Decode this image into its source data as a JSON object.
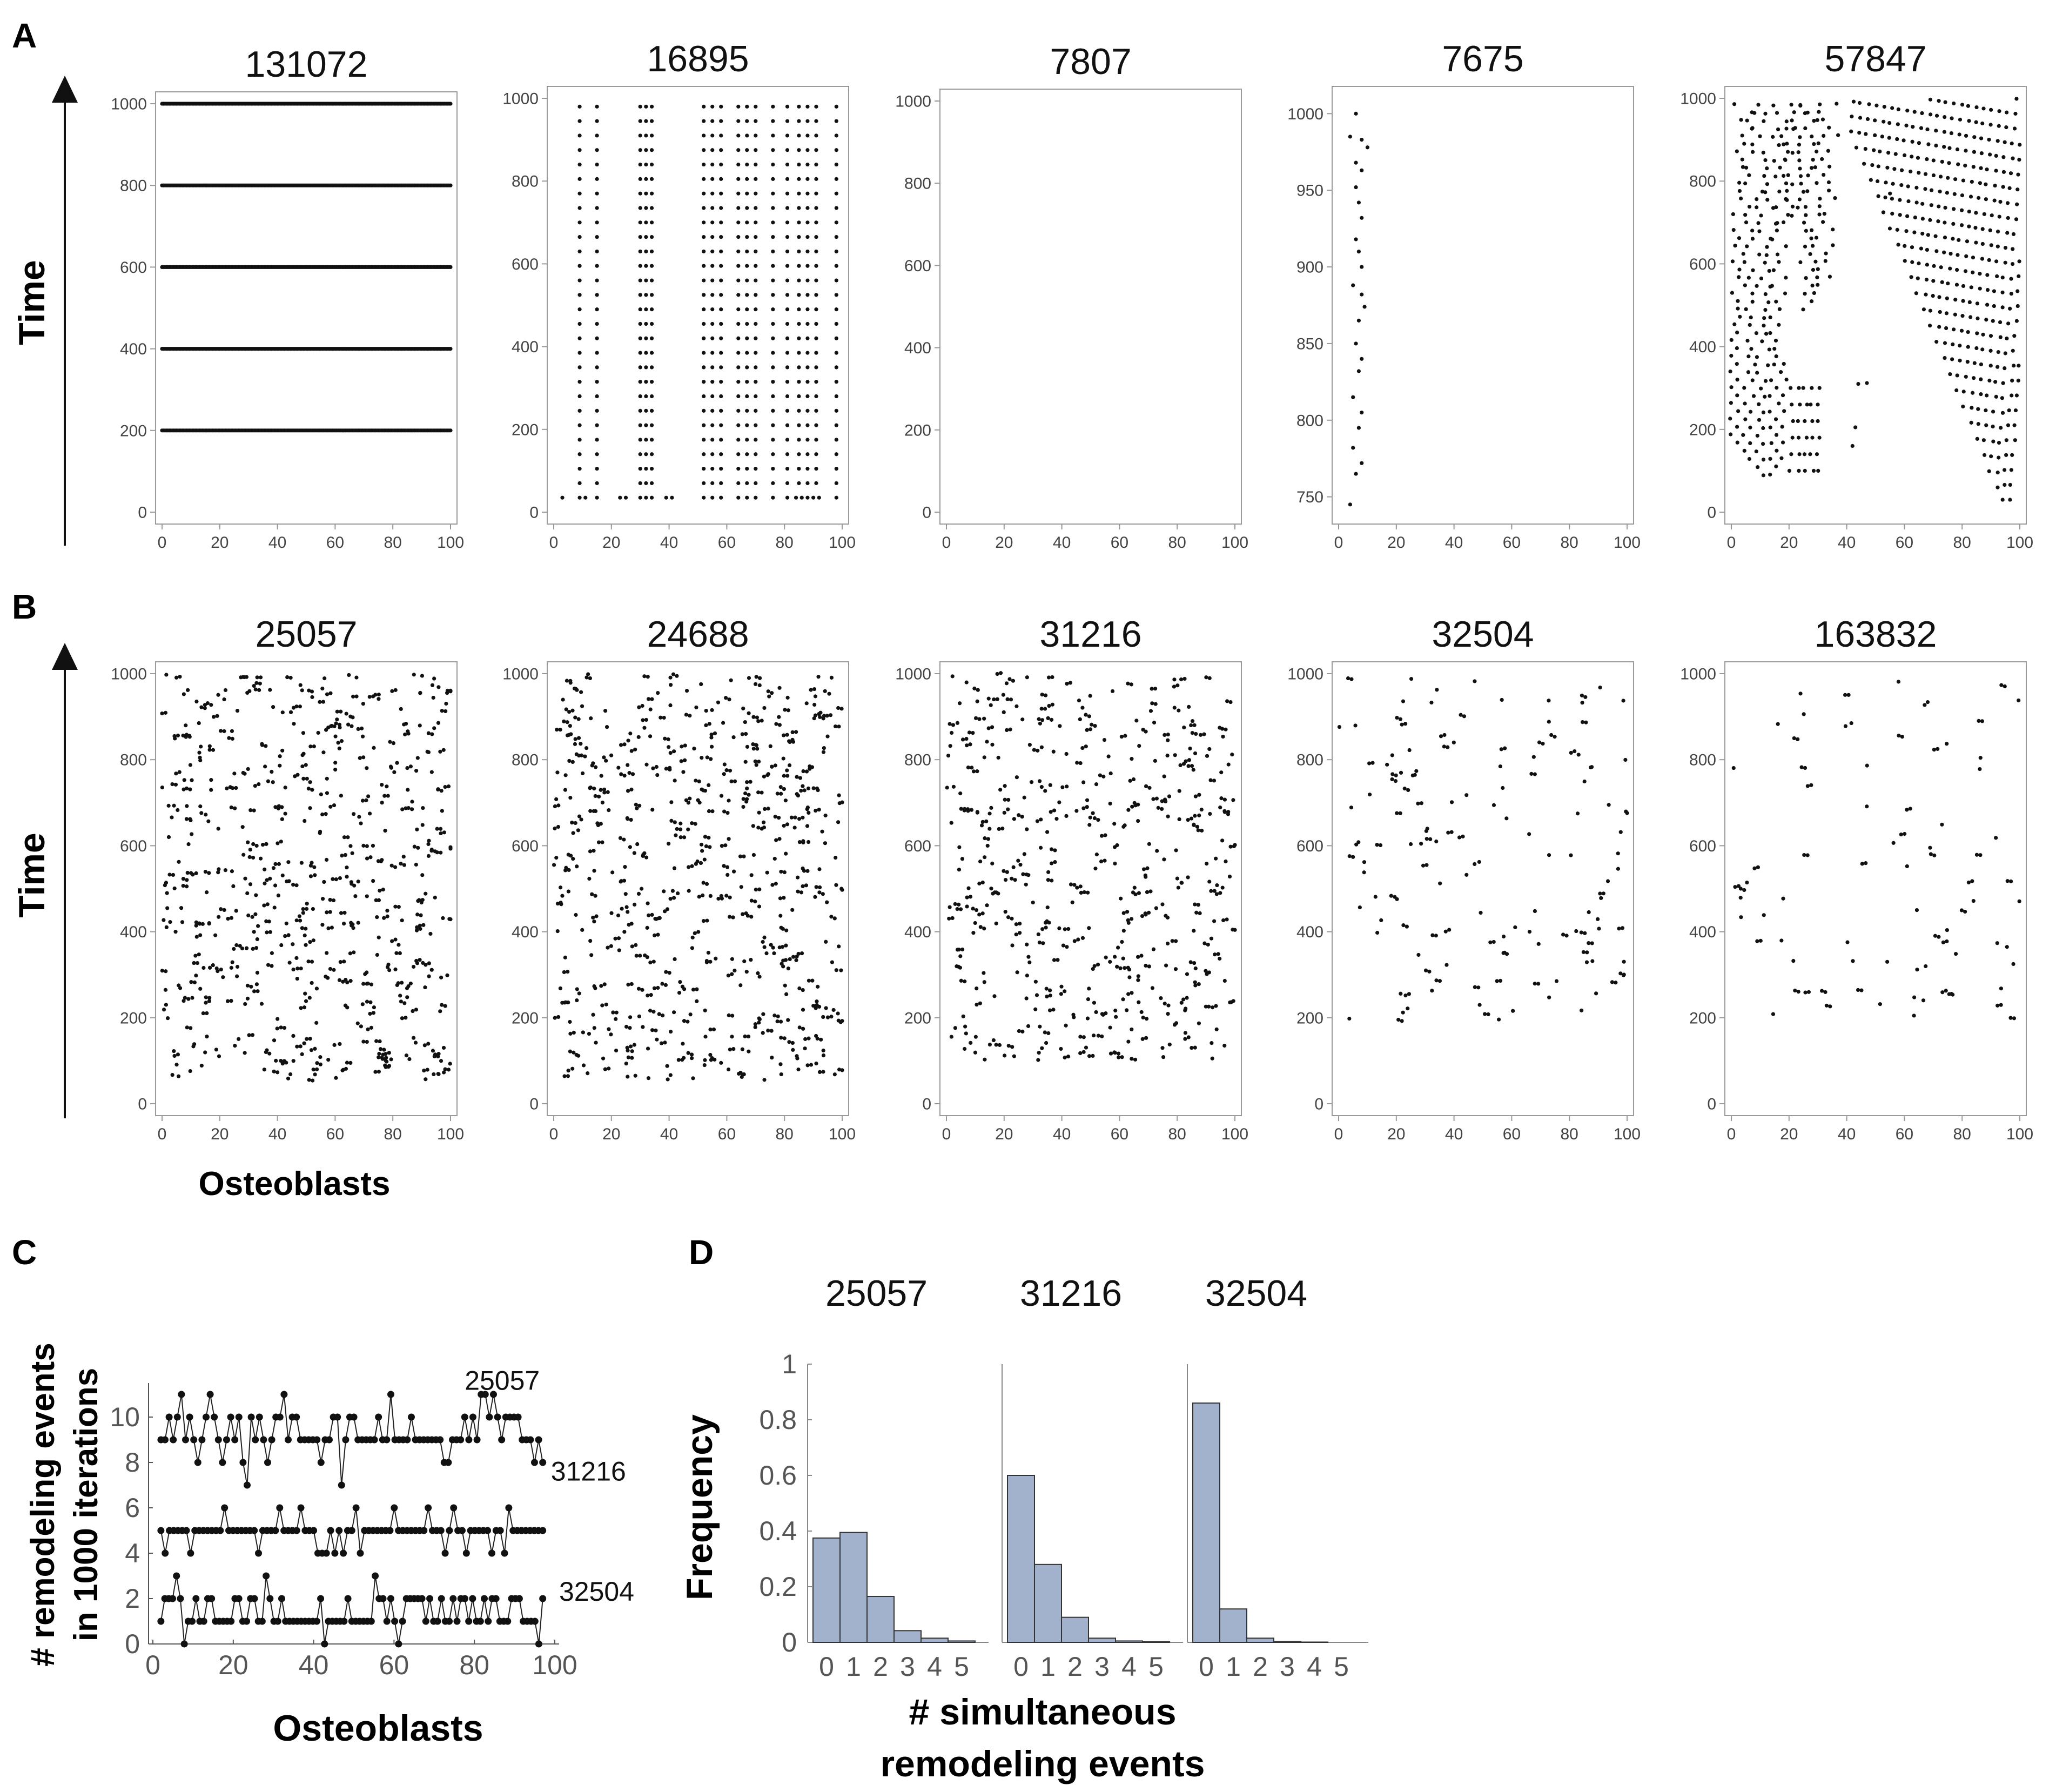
{
  "figure": {
    "panel_letters": [
      "A",
      "B",
      "C",
      "D"
    ],
    "time_label": "Time",
    "osteoblasts_label": "Osteoblasts",
    "c_ylabel_line1": "# remodeling events",
    "c_ylabel_line2": "in 1000 iterations",
    "d_ylabel": "Frequency",
    "d_xlabel_line1": "# simultaneous",
    "d_xlabel_line2": "remodeling events"
  },
  "chart_data": [
    {
      "type": "scatter",
      "panel": "A",
      "title": "131072",
      "pattern": "rows",
      "rows": [
        200,
        400,
        600,
        800,
        1000
      ],
      "xlim": [
        0,
        100
      ],
      "ylim": [
        0,
        1000
      ],
      "xticks": [
        0,
        20,
        40,
        60,
        80,
        100
      ],
      "yticks": [
        0,
        200,
        400,
        600,
        800,
        1000
      ]
    },
    {
      "type": "scatter",
      "panel": "A",
      "title": "16895",
      "pattern": "columns",
      "columns": [
        9,
        15,
        30,
        32,
        34,
        52,
        55,
        58,
        64,
        67,
        70,
        76,
        81,
        85,
        88,
        91,
        98
      ],
      "ystart": 70,
      "ystep": 35,
      "ymax": 990,
      "base_y": 35,
      "base_x": [
        3,
        9,
        11,
        15,
        23,
        25,
        30,
        32,
        34,
        39,
        41,
        52,
        55,
        58,
        64,
        67,
        70,
        76,
        81,
        84,
        86,
        88,
        90,
        92,
        98
      ],
      "xlim": [
        0,
        100
      ],
      "ylim": [
        0,
        1000
      ],
      "xticks": [
        0,
        20,
        40,
        60,
        80,
        100
      ],
      "yticks": [
        0,
        200,
        400,
        600,
        800,
        1000
      ]
    },
    {
      "type": "scatter",
      "panel": "A",
      "title": "7807",
      "pattern": "empty",
      "xlim": [
        0,
        100
      ],
      "ylim": [
        0,
        1000
      ],
      "xticks": [
        0,
        20,
        40,
        60,
        80,
        100
      ],
      "yticks": [
        0,
        200,
        400,
        600,
        800,
        1000
      ]
    },
    {
      "type": "scatter",
      "panel": "A",
      "title": "7675",
      "pattern": "points",
      "points": [
        [
          4,
          745
        ],
        [
          6,
          765
        ],
        [
          8,
          772
        ],
        [
          5,
          782
        ],
        [
          7,
          795
        ],
        [
          8,
          805
        ],
        [
          5,
          815
        ],
        [
          7,
          832
        ],
        [
          8,
          840
        ],
        [
          6,
          850
        ],
        [
          7,
          865
        ],
        [
          9,
          874
        ],
        [
          8,
          882
        ],
        [
          5,
          888
        ],
        [
          8,
          900
        ],
        [
          7,
          910
        ],
        [
          6,
          918
        ],
        [
          8,
          932
        ],
        [
          7,
          942
        ],
        [
          6,
          952
        ],
        [
          8,
          963
        ],
        [
          6,
          968
        ],
        [
          10,
          978
        ],
        [
          8,
          983
        ],
        [
          4,
          985
        ],
        [
          6,
          1000
        ]
      ],
      "xlim": [
        0,
        100
      ],
      "ylim": [
        740,
        1010
      ],
      "xticks": [
        0,
        20,
        40,
        60,
        80,
        100
      ],
      "yticks": [
        750,
        800,
        850,
        900,
        950,
        1000
      ]
    },
    {
      "type": "scatter",
      "panel": "A",
      "title": "57847",
      "pattern": "waves",
      "xlim": [
        0,
        100
      ],
      "ylim": [
        0,
        1000
      ],
      "xticks": [
        0,
        20,
        40,
        60,
        80,
        100
      ],
      "yticks": [
        0,
        200,
        400,
        600,
        800,
        1000
      ]
    },
    {
      "type": "scatter",
      "panel": "B",
      "title": "25057",
      "pattern": "random",
      "count": 560,
      "seed": 11,
      "ymin": 55,
      "ymax": 1000,
      "xlim": [
        0,
        100
      ],
      "ylim": [
        0,
        1000
      ],
      "xticks": [
        0,
        20,
        40,
        60,
        80,
        100
      ],
      "yticks": [
        0,
        200,
        400,
        600,
        800,
        1000
      ]
    },
    {
      "type": "scatter",
      "panel": "B",
      "title": "24688",
      "pattern": "random",
      "count": 560,
      "seed": 23,
      "ymin": 55,
      "ymax": 1000,
      "xlim": [
        0,
        100
      ],
      "ylim": [
        0,
        1000
      ],
      "xticks": [
        0,
        20,
        40,
        60,
        80,
        100
      ],
      "yticks": [
        0,
        200,
        400,
        600,
        800,
        1000
      ]
    },
    {
      "type": "scatter",
      "panel": "B",
      "title": "31216",
      "pattern": "random",
      "count": 450,
      "seed": 37,
      "ymin": 100,
      "ymax": 1000,
      "xlim": [
        0,
        100
      ],
      "ylim": [
        0,
        1000
      ],
      "xticks": [
        0,
        20,
        40,
        60,
        80,
        100
      ],
      "yticks": [
        0,
        200,
        400,
        600,
        800,
        1000
      ]
    },
    {
      "type": "scatter",
      "panel": "B",
      "title": "32504",
      "pattern": "random",
      "count": 140,
      "seed": 41,
      "ymin": 180,
      "ymax": 990,
      "xlim": [
        0,
        100
      ],
      "ylim": [
        0,
        1000
      ],
      "xticks": [
        0,
        20,
        40,
        60,
        80,
        100
      ],
      "yticks": [
        0,
        200,
        400,
        600,
        800,
        1000
      ]
    },
    {
      "type": "scatter",
      "panel": "B",
      "title": "163832",
      "pattern": "random",
      "count": 80,
      "seed": 53,
      "ymin": 190,
      "ymax": 990,
      "xlim": [
        0,
        100
      ],
      "ylim": [
        0,
        1000
      ],
      "xticks": [
        0,
        20,
        40,
        60,
        80,
        100
      ],
      "yticks": [
        0,
        200,
        400,
        600,
        800,
        1000
      ]
    },
    {
      "type": "line",
      "panel": "C",
      "xlabel": "Osteoblasts",
      "ylabel": "# remodeling events in 1000 iterations",
      "xlim": [
        0,
        100
      ],
      "ylim": [
        0,
        11.5
      ],
      "xticks": [
        0,
        20,
        40,
        60,
        80,
        100
      ],
      "yticks": [
        0,
        2,
        4,
        6,
        8,
        10
      ],
      "series": [
        {
          "name": "25057",
          "values": [
            9,
            9,
            10,
            9,
            10,
            11,
            9,
            10,
            9,
            8,
            9,
            10,
            11,
            10,
            9,
            8,
            9,
            10,
            9,
            10,
            8,
            7,
            10,
            9,
            10,
            9,
            8,
            9,
            10,
            10,
            11,
            9,
            10,
            10,
            9,
            9,
            9,
            9,
            9,
            8,
            9,
            9,
            10,
            10,
            7,
            9,
            10,
            10,
            9,
            9,
            9,
            9,
            9,
            10,
            9,
            9,
            11,
            9,
            9,
            9,
            9,
            10,
            9,
            9,
            9,
            9,
            9,
            9,
            9,
            8,
            8,
            9,
            9,
            9,
            10,
            9,
            10,
            9,
            11,
            11,
            10,
            11,
            10,
            9,
            10,
            10,
            10,
            10,
            9,
            9,
            9,
            8,
            9,
            8
          ]
        },
        {
          "name": "31216",
          "values": [
            5,
            4,
            5,
            5,
            5,
            5,
            5,
            4,
            5,
            5,
            5,
            5,
            5,
            5,
            5,
            6,
            5,
            5,
            5,
            5,
            5,
            5,
            5,
            4,
            5,
            5,
            5,
            5,
            6,
            5,
            5,
            5,
            5,
            6,
            5,
            5,
            5,
            4,
            4,
            4,
            5,
            4,
            5,
            4,
            5,
            5,
            6,
            4,
            5,
            5,
            5,
            5,
            5,
            5,
            5,
            6,
            5,
            5,
            5,
            5,
            5,
            5,
            5,
            6,
            5,
            5,
            5,
            4,
            5,
            6,
            5,
            5,
            4,
            5,
            5,
            5,
            5,
            5,
            4,
            5,
            5,
            4,
            6,
            5,
            5,
            5,
            5,
            5,
            5,
            5,
            5
          ]
        },
        {
          "name": "32504",
          "values": [
            1,
            2,
            2,
            2,
            3,
            2,
            0,
            1,
            1,
            2,
            1,
            1,
            2,
            2,
            1,
            1,
            1,
            1,
            1,
            2,
            2,
            1,
            1,
            2,
            2,
            1,
            1,
            3,
            2,
            1,
            1,
            2,
            1,
            1,
            1,
            1,
            1,
            1,
            1,
            1,
            1,
            2,
            0,
            1,
            1,
            1,
            1,
            1,
            2,
            1,
            1,
            1,
            1,
            1,
            1,
            3,
            2,
            2,
            1,
            2,
            1,
            0,
            1,
            2,
            2,
            2,
            2,
            2,
            1,
            2,
            1,
            1,
            2,
            1,
            1,
            2,
            1,
            2,
            2,
            1,
            2,
            1,
            1,
            2,
            1,
            2,
            2,
            1,
            1,
            1,
            2,
            2,
            2,
            1,
            1,
            1,
            1,
            0,
            2
          ]
        }
      ]
    },
    {
      "type": "bar",
      "panel": "D",
      "title": "25057",
      "categories": [
        "0",
        "1",
        "2",
        "3",
        "4",
        "5"
      ],
      "values": [
        0.375,
        0.395,
        0.165,
        0.042,
        0.015,
        0.005
      ],
      "ylim": [
        0,
        1
      ],
      "yticks": [
        0,
        0.2,
        0.4,
        0.6,
        0.8,
        1
      ],
      "color": "#a2b2cc"
    },
    {
      "type": "bar",
      "panel": "D",
      "title": "31216",
      "categories": [
        "0",
        "1",
        "2",
        "3",
        "4",
        "5"
      ],
      "values": [
        0.6,
        0.28,
        0.09,
        0.015,
        0.005,
        0.002
      ],
      "ylim": [
        0,
        1
      ],
      "color": "#a2b2cc"
    },
    {
      "type": "bar",
      "panel": "D",
      "title": "32504",
      "categories": [
        "0",
        "1",
        "2",
        "3",
        "4",
        "5"
      ],
      "values": [
        0.86,
        0.12,
        0.015,
        0.003,
        0.001,
        0.0
      ],
      "ylim": [
        0,
        1
      ],
      "color": "#a2b2cc"
    }
  ]
}
